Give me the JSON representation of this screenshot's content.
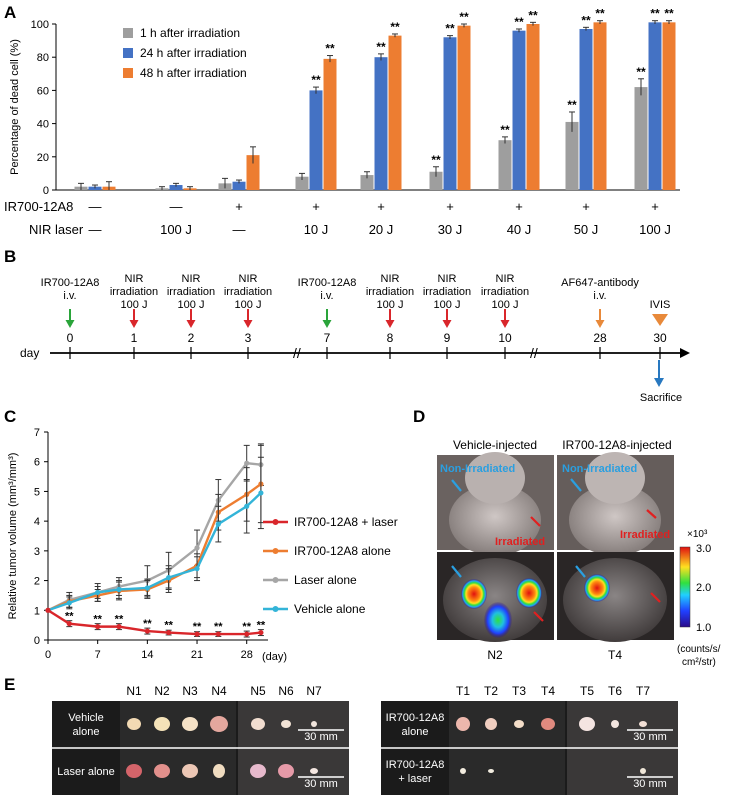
{
  "panels": {
    "a": "A",
    "b": "B",
    "c": "C",
    "d": "D",
    "e": "E"
  },
  "chart_data": [
    {
      "panel": "A",
      "type": "bar",
      "ylabel": "Percentage of dead cell (%)",
      "ylim": [
        0,
        100
      ],
      "yticks": [
        "0",
        "20",
        "40",
        "60",
        "80",
        "100"
      ],
      "series": [
        {
          "name": "1 h after irradiation",
          "color": "#9e9e9e",
          "values": [
            2,
            1,
            4,
            8,
            9,
            11,
            30,
            41,
            62
          ],
          "errors": [
            2,
            1,
            3,
            2,
            2,
            3,
            2,
            6,
            5
          ],
          "marks": [
            "",
            "",
            "",
            "",
            "",
            "**",
            "**",
            "**",
            "**"
          ]
        },
        {
          "name": "24 h after irradiation",
          "color": "#4472c4",
          "values": [
            2,
            3,
            5,
            60,
            80,
            92,
            96,
            97,
            101
          ],
          "errors": [
            1,
            1,
            1,
            2,
            2,
            1,
            1,
            1,
            1
          ],
          "marks": [
            "",
            "",
            "",
            "**",
            "**",
            "**",
            "**",
            "**",
            "**"
          ]
        },
        {
          "name": "48 h after irradiation",
          "color": "#ed7d31",
          "values": [
            2,
            1,
            21,
            79,
            93,
            99,
            100,
            101,
            101
          ],
          "errors": [
            3,
            1,
            5,
            2,
            1,
            1,
            1,
            1,
            1
          ],
          "marks": [
            "",
            "",
            "",
            "**",
            "**",
            "**",
            "**",
            "**",
            "**"
          ]
        }
      ],
      "row_labels": [
        "IR700-12A8",
        "NIR laser"
      ],
      "ir700_row": [
        "—",
        "—",
        "+",
        "+",
        "+",
        "+",
        "+",
        "+",
        "+"
      ],
      "laser_row": [
        "—",
        "100 J",
        "—",
        "10 J",
        "20 J",
        "30 J",
        "40 J",
        "50 J",
        "100 J"
      ]
    },
    {
      "panel": "C",
      "type": "line",
      "xlabel": "(day)",
      "ylabel": "Relative tumor volume (mm³/mm³)",
      "xlim": [
        0,
        31
      ],
      "ylim": [
        0,
        7
      ],
      "xticks": [
        "0",
        "7",
        "14",
        "21",
        "28"
      ],
      "yticks": [
        "0",
        "1",
        "2",
        "3",
        "4",
        "5",
        "6",
        "7"
      ],
      "x": [
        0,
        3,
        7,
        10,
        14,
        17,
        21,
        24,
        28,
        30
      ],
      "series": [
        {
          "name": "IR700-12A8 + laser",
          "color": "#d9262b",
          "values": [
            1,
            0.55,
            0.45,
            0.45,
            0.3,
            0.25,
            0.2,
            0.2,
            0.2,
            0.25
          ],
          "errors": [
            0,
            0.1,
            0.1,
            0.1,
            0.1,
            0.08,
            0.08,
            0.08,
            0.1,
            0.1
          ]
        },
        {
          "name": "IR700-12A8 alone",
          "color": "#ed7d31",
          "values": [
            1,
            1.3,
            1.5,
            1.65,
            1.7,
            2.0,
            2.5,
            4.3,
            4.9,
            5.25
          ],
          "errors": [
            0,
            0.2,
            0.2,
            0.3,
            0.3,
            0.4,
            0.4,
            0.6,
            0.9,
            1.3
          ]
        },
        {
          "name": "Laser alone",
          "color": "#a6a6a6",
          "values": [
            1,
            1.35,
            1.6,
            1.8,
            2.0,
            2.35,
            3.1,
            4.7,
            5.95,
            5.9
          ],
          "errors": [
            0,
            0.25,
            0.3,
            0.3,
            0.5,
            0.6,
            0.6,
            0.7,
            0.6,
            0.7
          ]
        },
        {
          "name": "Vehicle alone",
          "color": "#33b4d8",
          "values": [
            1,
            1.25,
            1.6,
            1.7,
            1.75,
            2.1,
            2.4,
            3.9,
            4.5,
            4.95
          ],
          "errors": [
            0,
            0.2,
            0.2,
            0.3,
            0.3,
            0.4,
            0.4,
            0.6,
            0.9,
            1.2
          ]
        }
      ],
      "sig_marks": [
        "**",
        "**",
        "**",
        "**",
        "**",
        "**",
        "**",
        "**",
        "**"
      ]
    }
  ],
  "timeline": {
    "day_label": "day",
    "events": [
      {
        "day": "0",
        "label1": "IR700-12A8",
        "label2": "i.v.",
        "label3": "",
        "color": "#2aa43a"
      },
      {
        "day": "1",
        "label1": "NIR",
        "label2": "irradiation",
        "label3": "100 J",
        "color": "#d9262b"
      },
      {
        "day": "2",
        "label1": "NIR",
        "label2": "irradiation",
        "label3": "100 J",
        "color": "#d9262b"
      },
      {
        "day": "3",
        "label1": "NIR",
        "label2": "irradiation",
        "label3": "100 J",
        "color": "#d9262b"
      },
      {
        "day": "7",
        "label1": "IR700-12A8",
        "label2": "i.v.",
        "label3": "",
        "color": "#2aa43a"
      },
      {
        "day": "8",
        "label1": "NIR",
        "label2": "irradiation",
        "label3": "100 J",
        "color": "#d9262b"
      },
      {
        "day": "9",
        "label1": "NIR",
        "label2": "irradiation",
        "label3": "100 J",
        "color": "#d9262b"
      },
      {
        "day": "10",
        "label1": "NIR",
        "label2": "irradiation",
        "label3": "100 J",
        "color": "#d9262b"
      },
      {
        "day": "28",
        "label1": "AF647-antibody",
        "label2": "i.v.",
        "label3": "",
        "color": "#e8893a"
      },
      {
        "day": "30",
        "label1": "IVIS",
        "label2": "",
        "label3": "",
        "color": "#e8893a"
      }
    ],
    "sacrifice": "Sacrifice"
  },
  "panel_d": {
    "col1": "Vehicle-injected",
    "col2": "IR700-12A8-injected",
    "non_irradiated": "Non-Irradiated",
    "irradiated": "Irradiated",
    "id1": "N2",
    "id2": "T4",
    "scale_exp": "×10³",
    "scale_max": "3.0",
    "scale_mid": "2.0",
    "scale_min": "1.0",
    "unit1": "(counts/s/",
    "unit2": "cm²/str)"
  },
  "panel_e": {
    "left_headers": [
      "N1",
      "N2",
      "N3",
      "N4",
      "N5",
      "N6",
      "N7"
    ],
    "right_headers": [
      "T1",
      "T2",
      "T3",
      "T4",
      "T5",
      "T6",
      "T7"
    ],
    "left_rows": [
      "Vehicle alone",
      "Laser alone"
    ],
    "right_rows": [
      "IR700-12A8 alone",
      "IR700-12A8 + laser"
    ],
    "scale": "30 mm"
  }
}
